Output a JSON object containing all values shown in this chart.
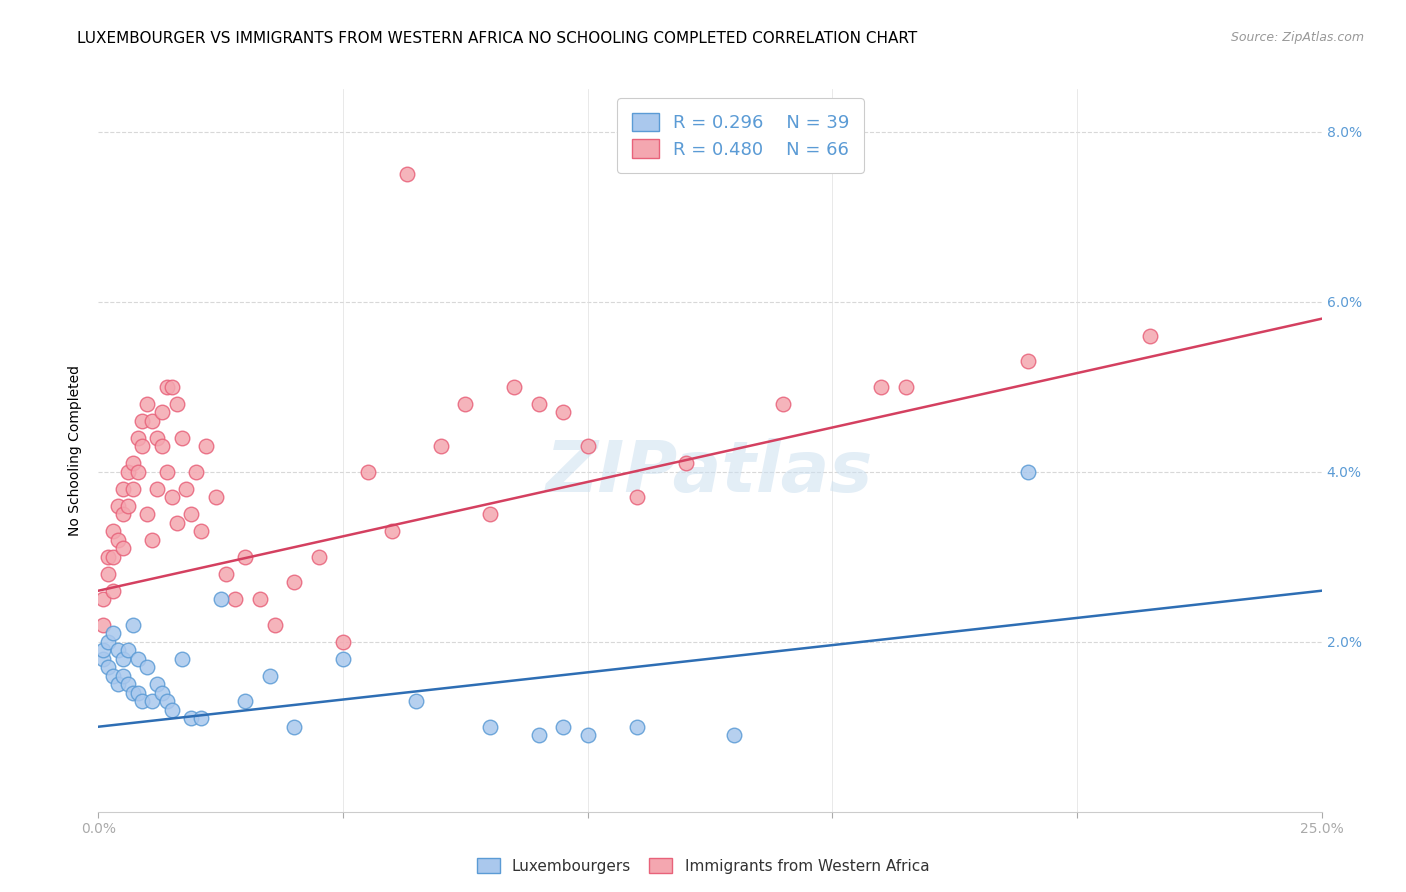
{
  "title": "LUXEMBOURGER VS IMMIGRANTS FROM WESTERN AFRICA NO SCHOOLING COMPLETED CORRELATION CHART",
  "source": "Source: ZipAtlas.com",
  "ylabel": "No Schooling Completed",
  "xlim": [
    0.0,
    0.25
  ],
  "ylim": [
    0.0,
    0.085
  ],
  "blue_color": "#aac8ed",
  "blue_edge_color": "#5b9bd5",
  "pink_color": "#f4a7b0",
  "pink_edge_color": "#e8627a",
  "blue_line_color": "#2e6eb4",
  "pink_line_color": "#d44060",
  "legend_R_blue": "0.296",
  "legend_N_blue": "39",
  "legend_R_pink": "0.480",
  "legend_N_pink": "66",
  "watermark": "ZIPatlas",
  "blue_line_start_y": 0.01,
  "blue_line_end_y": 0.026,
  "pink_line_start_y": 0.026,
  "pink_line_end_y": 0.058,
  "blue_x": [
    0.001,
    0.001,
    0.002,
    0.002,
    0.003,
    0.003,
    0.004,
    0.004,
    0.005,
    0.005,
    0.006,
    0.006,
    0.007,
    0.007,
    0.008,
    0.008,
    0.009,
    0.01,
    0.011,
    0.012,
    0.013,
    0.014,
    0.015,
    0.017,
    0.019,
    0.021,
    0.025,
    0.03,
    0.035,
    0.04,
    0.05,
    0.065,
    0.08,
    0.09,
    0.095,
    0.1,
    0.11,
    0.13,
    0.19
  ],
  "blue_y": [
    0.018,
    0.019,
    0.017,
    0.02,
    0.016,
    0.021,
    0.015,
    0.019,
    0.018,
    0.016,
    0.015,
    0.019,
    0.014,
    0.022,
    0.018,
    0.014,
    0.013,
    0.017,
    0.013,
    0.015,
    0.014,
    0.013,
    0.012,
    0.018,
    0.011,
    0.011,
    0.025,
    0.013,
    0.016,
    0.01,
    0.018,
    0.013,
    0.01,
    0.009,
    0.01,
    0.009,
    0.01,
    0.009,
    0.04
  ],
  "pink_x": [
    0.001,
    0.001,
    0.002,
    0.002,
    0.003,
    0.003,
    0.003,
    0.004,
    0.004,
    0.005,
    0.005,
    0.005,
    0.006,
    0.006,
    0.007,
    0.007,
    0.008,
    0.008,
    0.009,
    0.009,
    0.01,
    0.01,
    0.011,
    0.011,
    0.012,
    0.012,
    0.013,
    0.013,
    0.014,
    0.014,
    0.015,
    0.015,
    0.016,
    0.016,
    0.017,
    0.018,
    0.019,
    0.02,
    0.021,
    0.022,
    0.024,
    0.026,
    0.028,
    0.03,
    0.033,
    0.036,
    0.04,
    0.045,
    0.05,
    0.055,
    0.06,
    0.07,
    0.08,
    0.09,
    0.1,
    0.11,
    0.12,
    0.14,
    0.16,
    0.19,
    0.063,
    0.075,
    0.085,
    0.095,
    0.165,
    0.215
  ],
  "pink_y": [
    0.025,
    0.022,
    0.03,
    0.028,
    0.033,
    0.03,
    0.026,
    0.036,
    0.032,
    0.038,
    0.035,
    0.031,
    0.04,
    0.036,
    0.041,
    0.038,
    0.044,
    0.04,
    0.046,
    0.043,
    0.048,
    0.035,
    0.046,
    0.032,
    0.044,
    0.038,
    0.047,
    0.043,
    0.05,
    0.04,
    0.05,
    0.037,
    0.048,
    0.034,
    0.044,
    0.038,
    0.035,
    0.04,
    0.033,
    0.043,
    0.037,
    0.028,
    0.025,
    0.03,
    0.025,
    0.022,
    0.027,
    0.03,
    0.02,
    0.04,
    0.033,
    0.043,
    0.035,
    0.048,
    0.043,
    0.037,
    0.041,
    0.048,
    0.05,
    0.053,
    0.075,
    0.048,
    0.05,
    0.047,
    0.05,
    0.056
  ],
  "title_fontsize": 11,
  "axis_label_fontsize": 10,
  "tick_fontsize": 10,
  "source_fontsize": 9,
  "tick_color": "#5b9bd5"
}
